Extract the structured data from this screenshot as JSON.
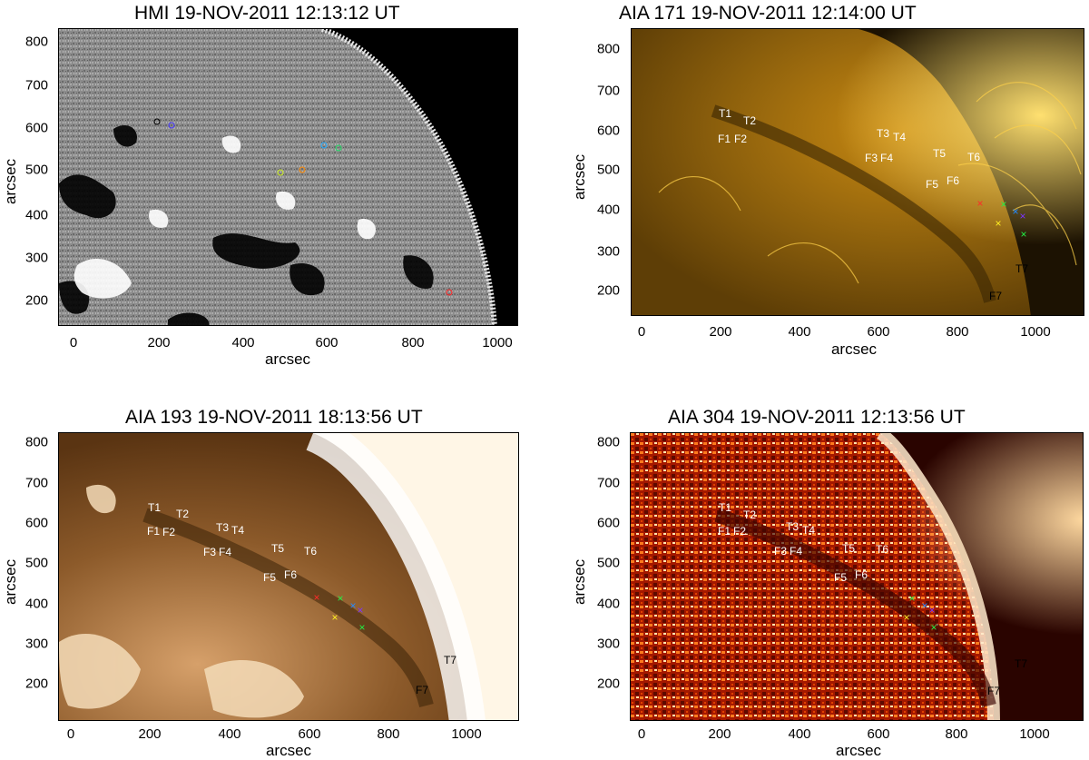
{
  "panels": [
    {
      "id": "hmi",
      "title": "HMI 19-NOV-2011 12:13:12 UT",
      "xlabel": "arcsec",
      "ylabel": "arcsec",
      "xticks": [
        "0",
        "200",
        "400",
        "600",
        "800",
        "1000"
      ],
      "yticks": [
        "200",
        "300",
        "400",
        "500",
        "600",
        "700",
        "800"
      ],
      "feature_labels": []
    },
    {
      "id": "aia171",
      "title": "AIA 171 19-NOV-2011 12:14:00 UT",
      "xlabel": "arcsec",
      "ylabel": "arcsec",
      "xticks": [
        "0",
        "200",
        "400",
        "600",
        "800",
        "1000"
      ],
      "yticks": [
        "200",
        "300",
        "400",
        "500",
        "600",
        "700",
        "800"
      ],
      "feature_labels": [
        "T1",
        "T2",
        "F1",
        "F2",
        "T3",
        "T4",
        "F3",
        "F4",
        "T5",
        "F5",
        "T6",
        "F6",
        "T7",
        "F7"
      ]
    },
    {
      "id": "aia193",
      "title": "AIA 193 19-NOV-2011 18:13:56 UT",
      "xlabel": "arcsec",
      "ylabel": "arcsec",
      "xticks": [
        "0",
        "200",
        "400",
        "600",
        "800",
        "1000"
      ],
      "yticks": [
        "200",
        "300",
        "400",
        "500",
        "600",
        "700",
        "800"
      ],
      "feature_labels": [
        "T1",
        "T2",
        "F1",
        "F2",
        "T3",
        "T4",
        "F3",
        "F4",
        "T5",
        "F5",
        "T6",
        "F6",
        "T7",
        "F7"
      ]
    },
    {
      "id": "aia304",
      "title": "AIA 304 19-NOV-2011 12:13:56 UT",
      "xlabel": "arcsec",
      "ylabel": "arcsec",
      "xticks": [
        "0",
        "200",
        "400",
        "600",
        "800",
        "1000"
      ],
      "yticks": [
        "200",
        "300",
        "400",
        "500",
        "600",
        "700",
        "800"
      ],
      "feature_labels": [
        "T1",
        "T2",
        "F1",
        "F2",
        "T3",
        "T4",
        "F3",
        "F4",
        "T5",
        "F5",
        "T6",
        "F6",
        "T7",
        "F7"
      ]
    }
  ],
  "colors": {
    "hmi_bg": "#8a8a8a",
    "aia171_bg": "#7a5408",
    "aia171_bright": "#ffcc33",
    "aia193_bg": "#7a4f22",
    "aia193_bright": "#fff4e0",
    "aia304_bg": "#8a1200",
    "aia304_bright": "#fff0c8",
    "space": "#000000"
  }
}
